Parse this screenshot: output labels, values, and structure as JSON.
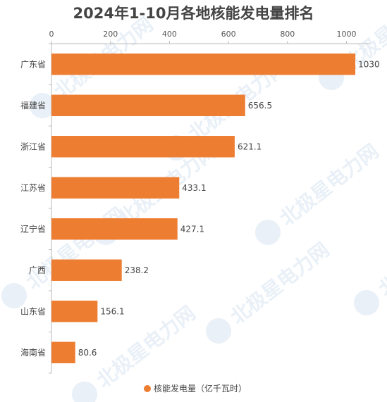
{
  "chart_data": {
    "type": "bar",
    "orientation": "horizontal",
    "title": "2024年1-10月各地核能发电量排名",
    "categories": [
      "广东省",
      "福建省",
      "浙江省",
      "江苏省",
      "辽宁省",
      "广西",
      "山东省",
      "海南省"
    ],
    "series": [
      {
        "name": "核能发电量（亿千瓦时）",
        "values": [
          1030,
          656.5,
          621.1,
          433.1,
          427.1,
          238.2,
          156.1,
          80.6
        ]
      }
    ],
    "value_labels": [
      "1030",
      "656.5",
      "621.1",
      "433.1",
      "427.1",
      "238.2",
      "156.1",
      "80.6"
    ],
    "x_ticks": [
      0,
      200,
      400,
      600,
      800,
      1000
    ],
    "x_tick_labels": [
      "0",
      "200",
      "400",
      "600",
      "800",
      "1000"
    ],
    "xlim": [
      0,
      1080
    ],
    "xaxis_position": "top",
    "grid": false,
    "legend_position": "bottom-center",
    "colors": {
      "bar": "#ED7D31",
      "axis": "#BBBBBB",
      "text": "#444444"
    }
  },
  "watermark_text": "北极星电力网"
}
